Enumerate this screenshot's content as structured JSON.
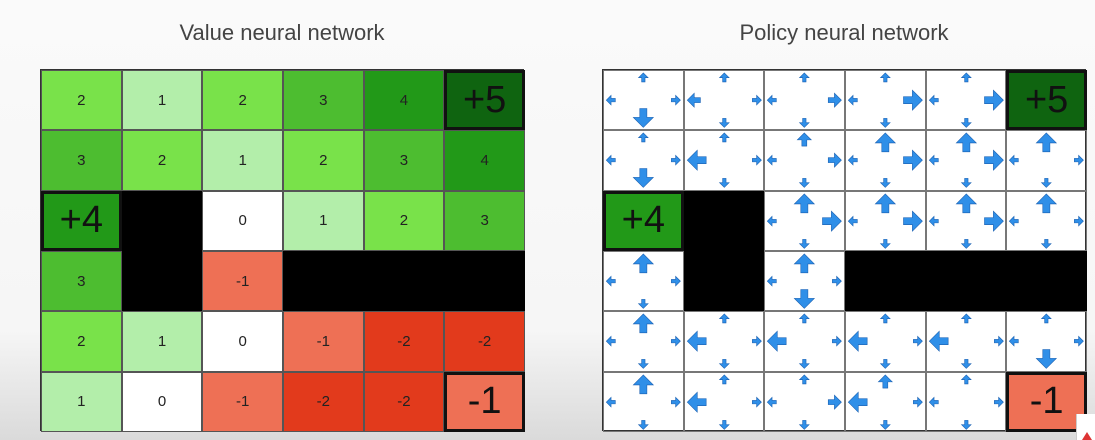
{
  "titles": {
    "value": "Value neural network",
    "policy": "Policy neural network"
  },
  "arrow_color": "#2f8fe8",
  "value_grid": [
    [
      {
        "t": "2",
        "c": "#79e24a"
      },
      {
        "t": "1",
        "c": "#b3eeaa"
      },
      {
        "t": "2",
        "c": "#79e24a"
      },
      {
        "t": "3",
        "c": "#4dbd30"
      },
      {
        "t": "4",
        "c": "#229918"
      },
      {
        "t": "+5",
        "c": "#0f6410",
        "big": true
      }
    ],
    [
      {
        "t": "3",
        "c": "#4dbd30"
      },
      {
        "t": "2",
        "c": "#79e24a"
      },
      {
        "t": "1",
        "c": "#b3eeaa"
      },
      {
        "t": "2",
        "c": "#79e24a"
      },
      {
        "t": "3",
        "c": "#4dbd30"
      },
      {
        "t": "4",
        "c": "#229918"
      }
    ],
    [
      {
        "t": "+4",
        "c": "#229918",
        "big": true
      },
      {
        "wall": true
      },
      {
        "t": "0",
        "c": "#ffffff"
      },
      {
        "t": "1",
        "c": "#b3eeaa"
      },
      {
        "t": "2",
        "c": "#79e24a"
      },
      {
        "t": "3",
        "c": "#4dbd30"
      }
    ],
    [
      {
        "t": "3",
        "c": "#4dbd30"
      },
      {
        "wall": true
      },
      {
        "t": "-1",
        "c": "#ee7055"
      },
      {
        "wall": true
      },
      {
        "wall": true
      },
      {
        "wall": true
      }
    ],
    [
      {
        "t": "2",
        "c": "#79e24a"
      },
      {
        "t": "1",
        "c": "#b3eeaa"
      },
      {
        "t": "0",
        "c": "#ffffff"
      },
      {
        "t": "-1",
        "c": "#ee7055"
      },
      {
        "t": "-2",
        "c": "#e23a1c"
      },
      {
        "t": "-2",
        "c": "#e23a1c"
      }
    ],
    [
      {
        "t": "1",
        "c": "#b3eeaa"
      },
      {
        "t": "0",
        "c": "#ffffff"
      },
      {
        "t": "-1",
        "c": "#ee7055"
      },
      {
        "t": "-2",
        "c": "#e23a1c"
      },
      {
        "t": "-2",
        "c": "#e23a1c"
      },
      {
        "t": "-1",
        "c": "#ee7055",
        "big": true
      }
    ]
  ],
  "policy_grid": [
    [
      {
        "u": 1,
        "d": 3,
        "l": 1,
        "r": 1
      },
      {
        "u": 1,
        "d": 1,
        "l": 2,
        "r": 1
      },
      {
        "u": 1,
        "d": 1,
        "l": 1,
        "r": 2
      },
      {
        "u": 1,
        "d": 1,
        "l": 1,
        "r": 3
      },
      {
        "u": 1,
        "d": 1,
        "l": 1,
        "r": 3
      },
      {
        "term": "+5",
        "c": "#0f6410"
      }
    ],
    [
      {
        "u": 1,
        "d": 3,
        "l": 1,
        "r": 1
      },
      {
        "u": 1,
        "d": 1,
        "l": 3,
        "r": 1
      },
      {
        "u": 2,
        "d": 1,
        "l": 1,
        "r": 2
      },
      {
        "u": 3,
        "d": 1,
        "l": 1,
        "r": 3
      },
      {
        "u": 3,
        "d": 1,
        "l": 1,
        "r": 3
      },
      {
        "u": 3,
        "d": 1,
        "l": 1,
        "r": 1
      }
    ],
    [
      {
        "term": "+4",
        "c": "#229918"
      },
      {
        "wall": true
      },
      {
        "u": 3,
        "d": 1,
        "l": 1,
        "r": 3
      },
      {
        "u": 3,
        "d": 1,
        "l": 1,
        "r": 3
      },
      {
        "u": 3,
        "d": 1,
        "l": 1,
        "r": 3
      },
      {
        "u": 3,
        "d": 1,
        "l": 1,
        "r": 1
      }
    ],
    [
      {
        "u": 3,
        "d": 1,
        "l": 1,
        "r": 1
      },
      {
        "wall": true
      },
      {
        "u": 3,
        "d": 3,
        "l": 1,
        "r": 1
      },
      {
        "wall": true
      },
      {
        "wall": true
      },
      {
        "wall": true
      }
    ],
    [
      {
        "u": 3,
        "d": 1,
        "l": 1,
        "r": 1
      },
      {
        "u": 1,
        "d": 1,
        "l": 3,
        "r": 1
      },
      {
        "u": 1,
        "d": 1,
        "l": 3,
        "r": 1
      },
      {
        "u": 1,
        "d": 1,
        "l": 3,
        "r": 1
      },
      {
        "u": 1,
        "d": 1,
        "l": 3,
        "r": 1
      },
      {
        "u": 1,
        "d": 3,
        "l": 1,
        "r": 1
      }
    ],
    [
      {
        "u": 3,
        "d": 1,
        "l": 1,
        "r": 1
      },
      {
        "u": 1,
        "d": 1,
        "l": 3,
        "r": 1
      },
      {
        "u": 1,
        "d": 1,
        "l": 1,
        "r": 2
      },
      {
        "u": 2,
        "d": 1,
        "l": 3,
        "r": 1
      },
      {
        "u": 1,
        "d": 1,
        "l": 1,
        "r": 1
      },
      {
        "term": "-1",
        "c": "#ee7055"
      }
    ]
  ]
}
